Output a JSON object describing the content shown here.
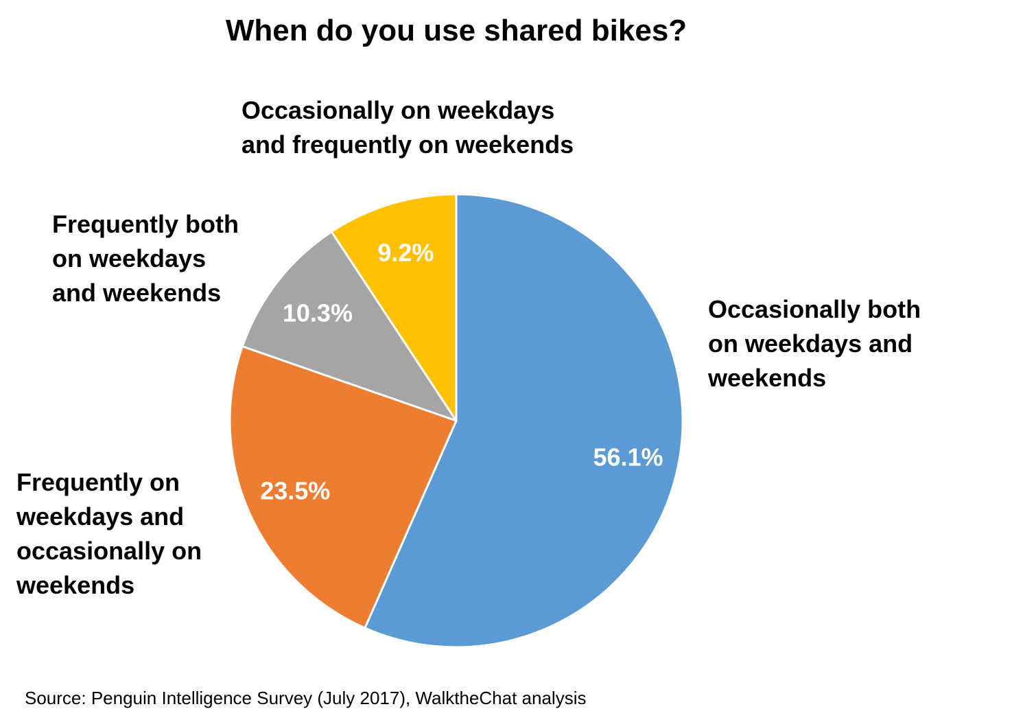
{
  "chart_data": {
    "type": "pie",
    "title": "When do you use shared bikes?",
    "categories": [
      "Occasionally  both\non weekdays and\nweekends",
      "Frequently on\nweekdays and\noccasionally on\nweekends",
      "Frequently both\non weekdays\nand weekends",
      "Occasionally on weekdays\nand frequently on weekends"
    ],
    "values": [
      56.1,
      23.5,
      10.3,
      9.2
    ],
    "value_labels": [
      "56.1%",
      "23.5%",
      "10.3%",
      "9.2%"
    ],
    "colors": [
      "#5B9BD5",
      "#ED7D31",
      "#A5A5A5",
      "#FFC000"
    ],
    "start_angle_deg": 0,
    "direction": "clockwise",
    "source": "Source: Penguin Intelligence Survey (July 2017), WalktheChat analysis"
  }
}
